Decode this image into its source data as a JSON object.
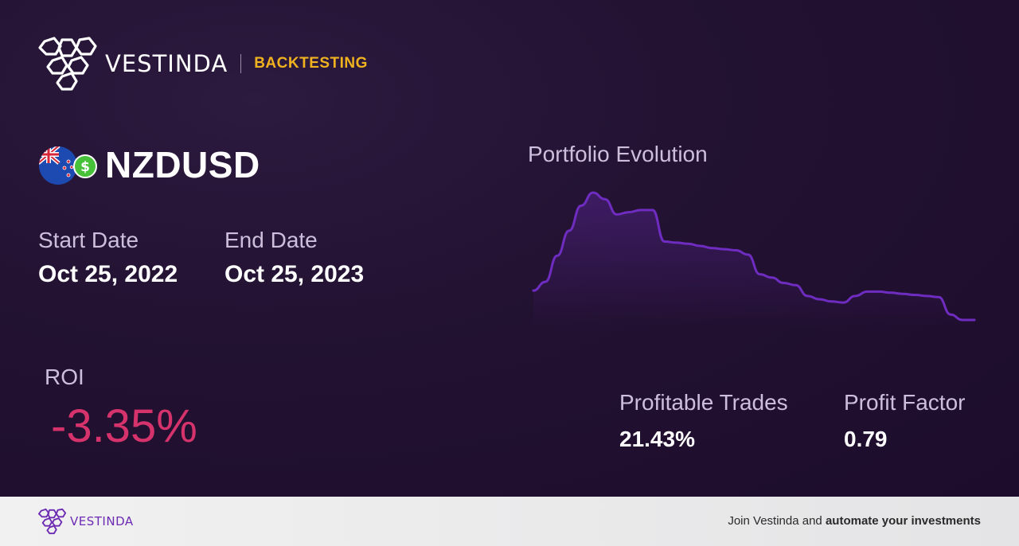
{
  "brand": {
    "name": "VESTINDA",
    "tag": "BACKTESTING"
  },
  "asset": {
    "symbol": "NZDUSD",
    "icons": [
      "new-zealand-flag-icon",
      "dollar-coin-icon"
    ]
  },
  "dates": {
    "start_label": "Start Date",
    "start_value": "Oct 25, 2022",
    "end_label": "End Date",
    "end_value": "Oct 25, 2023"
  },
  "roi": {
    "label": "ROI",
    "value": "-3.35%",
    "color": "#d6336c"
  },
  "chart": {
    "title": "Portfolio Evolution",
    "line_color": "#6f2cc0"
  },
  "chart_data": {
    "type": "line",
    "series": [
      {
        "values": [
          0.1,
          0.18,
          0.42,
          0.65,
          0.88,
          1.0,
          0.94,
          0.8,
          0.82,
          0.84,
          0.84,
          0.55,
          0.54,
          0.53,
          0.51,
          0.49,
          0.48,
          0.47,
          0.43,
          0.25,
          0.22,
          0.17,
          0.15,
          0.05,
          0.02,
          0.0,
          -0.01,
          0.05,
          0.09,
          0.09,
          0.08,
          0.07,
          0.06,
          0.05,
          0.04,
          -0.12,
          -0.17,
          -0.17
        ]
      }
    ]
  },
  "stats": {
    "profitable_label": "Profitable Trades",
    "profitable_value": "21.43%",
    "factor_label": "Profit Factor",
    "factor_value": "0.79"
  },
  "footer": {
    "brand": "VESTINDA",
    "cta_prefix": "Join Vestinda and ",
    "cta_bold": "automate your investments"
  }
}
